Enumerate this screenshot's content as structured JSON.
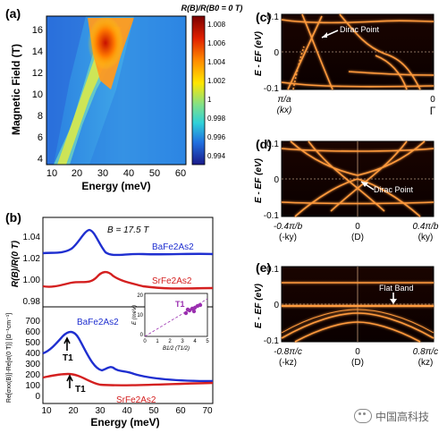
{
  "panels": {
    "a": {
      "label": "(a)",
      "ylabel": "Magnetic Field (T)",
      "xlabel": "Energy (meV)",
      "colorbar_title": "R(B)/R(B0 = 0 T)",
      "colorbar_ticks": [
        "1.008",
        "1.006",
        "1.004",
        "1.002",
        "1",
        "0.998",
        "0.996",
        "0.994"
      ],
      "yticks": [
        "16",
        "14",
        "12",
        "10",
        "8",
        "6",
        "4"
      ],
      "xticks": [
        "10",
        "20",
        "30",
        "40",
        "50",
        "60"
      ]
    },
    "b": {
      "label": "(b)",
      "field_label": "B = 17.5 T",
      "ylabel_top": "R(B)/R(0 T)",
      "ylabel_bottom": "Re[σxx(B)]-Re[σ(0 T)] [Ω⁻¹cm⁻¹]",
      "xlabel": "Energy (meV)",
      "yticks_top": [
        "1.04",
        "1.02",
        "1.00",
        "0.98"
      ],
      "yticks_bottom": [
        "700",
        "600",
        "500",
        "400",
        "300",
        "200",
        "100",
        "0"
      ],
      "xticks": [
        "10",
        "20",
        "30",
        "40",
        "50",
        "60",
        "70"
      ],
      "series_ba": "BaFe2As2",
      "series_sr": "SrFe2As2",
      "t1_ba": "T1",
      "t1_sr": "T1",
      "inset": {
        "label": "T1",
        "ylabel": "E (meV)",
        "xlabel": "B1/2 (T1/2)",
        "yticks": [
          "20",
          "10",
          "0"
        ],
        "xticks": [
          "0",
          "1",
          "2",
          "3",
          "4",
          "5"
        ]
      }
    },
    "c": {
      "label": "(c)",
      "ylabel": "E - EF (eV)",
      "yticks": [
        "0.1",
        "0",
        "-0.1"
      ],
      "annotation": "Dirac Point",
      "x_left": "π/a",
      "x_left_sub": "(kx)",
      "x_right": "0",
      "x_right_sub": "Γ"
    },
    "d": {
      "label": "(d)",
      "ylabel": "E - EF (eV)",
      "yticks": [
        "0.1",
        "0",
        "-0.1"
      ],
      "annotation": "Dirac Point",
      "x_left": "-0.4π/b",
      "x_left_sub": "(-ky)",
      "x_mid": "0",
      "x_mid_sub": "(D)",
      "x_right": "0.4π/b",
      "x_right_sub": "(ky)"
    },
    "e": {
      "label": "(e)",
      "ylabel": "E - EF (eV)",
      "yticks": [
        "0.1",
        "0",
        "-0.1"
      ],
      "annotation": "Flat Band",
      "x_left": "-0.8π/c",
      "x_left_sub": "(-kz)",
      "x_mid": "0",
      "x_mid_sub": "(D)",
      "x_right": "0.8π/c",
      "x_right_sub": "(kz)"
    }
  },
  "watermark": "中国高科技",
  "colors": {
    "ba_line": "#1f2fd0",
    "sr_line": "#d42020",
    "band_glow": "#ff9a3c",
    "inset_points": "#9b30b0"
  }
}
